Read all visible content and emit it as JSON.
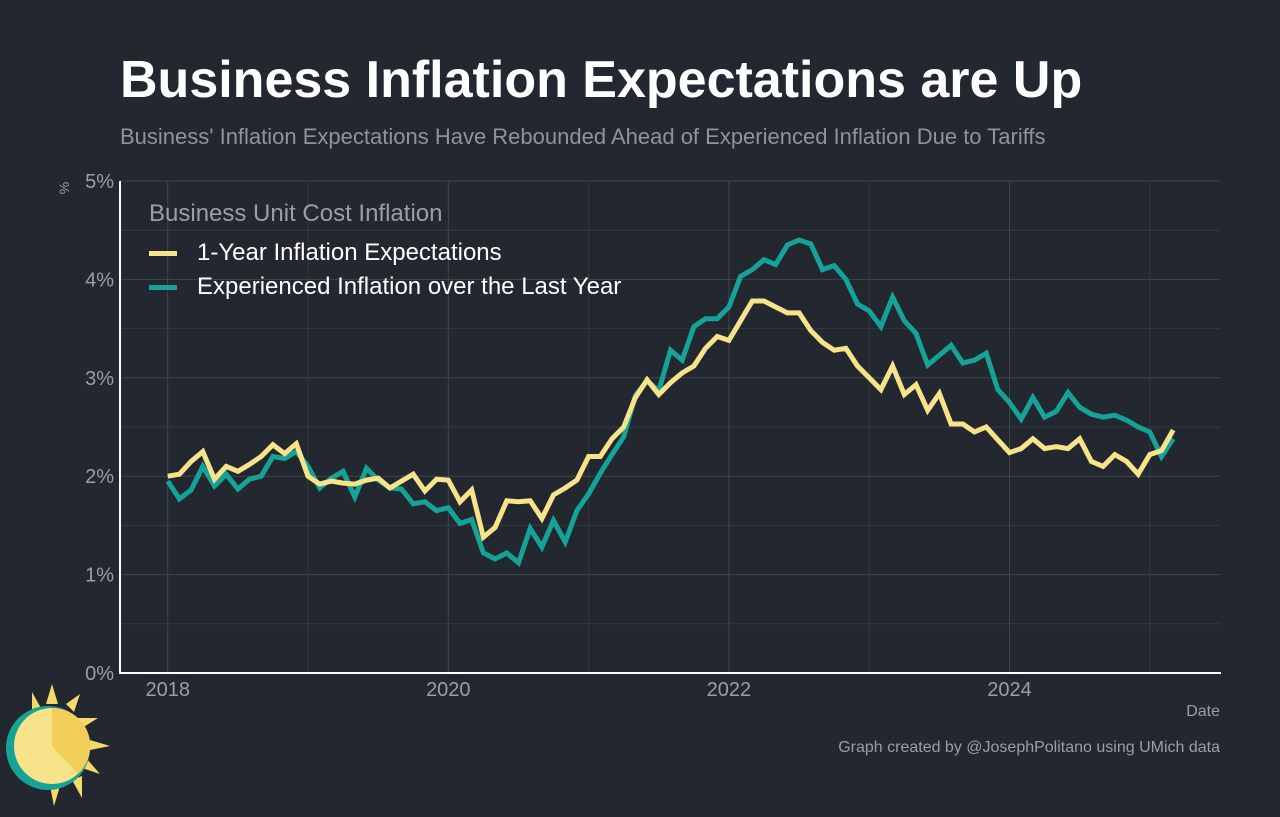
{
  "header": {
    "title": "Business Inflation Expectations are Up",
    "subtitle": "Business' Inflation Expectations Have Rebounded Ahead of Experienced Inflation Due to Tariffs"
  },
  "footer": {
    "caption": "Graph created by @JosephPolitano using UMich data"
  },
  "colors": {
    "background": "#23272f",
    "yellow": "#f7e38a",
    "teal": "#14a396"
  },
  "chart_data": {
    "type": "line",
    "title": "Business Inflation Expectations are Up",
    "xlabel": "Date",
    "ylabel": "%",
    "legend_title": "Business Unit Cost Inflation",
    "legend_position": "top-left",
    "grid": true,
    "xlim": [
      2017.66,
      2025.5
    ],
    "ylim": [
      0,
      5
    ],
    "x_ticks": [
      2018,
      2020,
      2022,
      2024
    ],
    "x_tick_labels": [
      "2018",
      "2020",
      "2022",
      "2024"
    ],
    "y_ticks": [
      0,
      1,
      2,
      3,
      4,
      5
    ],
    "y_tick_labels": [
      "0%",
      "1%",
      "2%",
      "3%",
      "4%",
      "5%"
    ],
    "x_start": "2018-01",
    "frequency": "monthly",
    "series": [
      {
        "name": "1-Year Inflation Expectations",
        "color": "#f7e38a",
        "values": [
          2.0,
          2.02,
          2.15,
          2.25,
          1.97,
          2.1,
          2.05,
          2.12,
          2.2,
          2.32,
          2.23,
          2.33,
          2.0,
          1.92,
          1.95,
          1.93,
          1.92,
          1.96,
          1.98,
          1.88,
          1.95,
          2.02,
          1.85,
          1.97,
          1.96,
          1.74,
          1.86,
          1.38,
          1.48,
          1.75,
          1.74,
          1.75,
          1.57,
          1.81,
          1.88,
          1.96,
          2.2,
          2.2,
          2.38,
          2.5,
          2.8,
          2.98,
          2.83,
          2.95,
          3.05,
          3.12,
          3.3,
          3.42,
          3.38,
          3.58,
          3.78,
          3.78,
          3.72,
          3.66,
          3.66,
          3.48,
          3.36,
          3.28,
          3.3,
          3.12,
          3.0,
          2.88,
          3.12,
          2.83,
          2.93,
          2.67,
          2.84,
          2.53,
          2.53,
          2.45,
          2.5,
          2.37,
          2.24,
          2.28,
          2.38,
          2.28,
          2.3,
          2.28,
          2.38,
          2.15,
          2.1,
          2.22,
          2.15,
          2.02,
          2.22,
          2.26,
          2.47
        ]
      },
      {
        "name": "Experienced Inflation over the Last Year",
        "color": "#14a396",
        "values": [
          1.95,
          1.77,
          1.86,
          2.1,
          1.9,
          2.02,
          1.87,
          1.97,
          2.0,
          2.2,
          2.18,
          2.25,
          2.1,
          1.88,
          1.98,
          2.05,
          1.79,
          2.08,
          1.96,
          1.88,
          1.87,
          1.72,
          1.74,
          1.65,
          1.68,
          1.52,
          1.56,
          1.22,
          1.16,
          1.22,
          1.12,
          1.47,
          1.28,
          1.55,
          1.33,
          1.65,
          1.82,
          2.03,
          2.22,
          2.4,
          2.82,
          2.97,
          2.87,
          3.28,
          3.18,
          3.52,
          3.6,
          3.6,
          3.72,
          4.03,
          4.1,
          4.2,
          4.15,
          4.35,
          4.4,
          4.36,
          4.1,
          4.14,
          4.0,
          3.75,
          3.68,
          3.52,
          3.82,
          3.58,
          3.45,
          3.13,
          3.23,
          3.33,
          3.15,
          3.18,
          3.25,
          2.88,
          2.75,
          2.58,
          2.8,
          2.6,
          2.66,
          2.85,
          2.7,
          2.63,
          2.6,
          2.62,
          2.57,
          2.5,
          2.45,
          2.2,
          2.38
        ]
      }
    ]
  }
}
